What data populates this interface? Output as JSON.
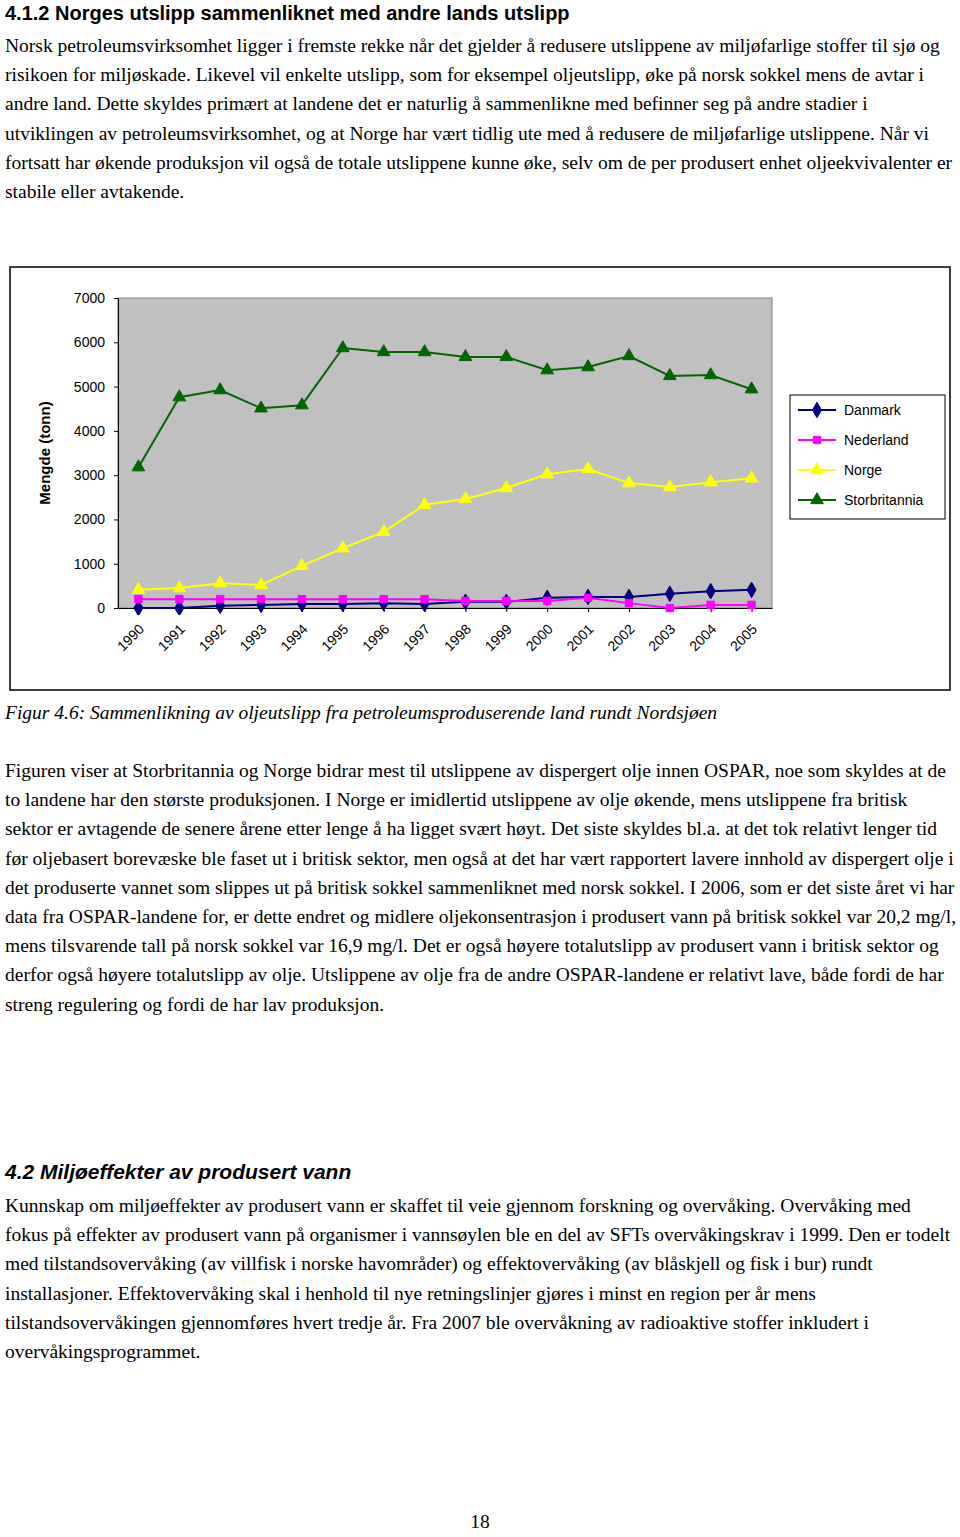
{
  "heading": "4.1.2 Norges utslipp sammenliknet med andre lands utslipp",
  "intro": "Norsk petroleumsvirksomhet ligger i fremste rekke når det gjelder å redusere utslippene av miljøfarlige stoffer til sjø og risikoen for miljøskade. Likevel vil enkelte utslipp, som for eksempel oljeutslipp, øke på norsk sokkel mens de avtar i andre land. Dette skyldes primært at landene det er naturlig å sammenlikne med befinner seg på andre stadier i utviklingen av petroleumsvirksomhet, og at Norge har vært tidlig ute med å redusere de miljøfarlige utslippene. Når vi fortsatt har økende produksjon vil også de totale utslippene kunne øke, selv om de per produsert enhet oljeekvivalenter er stabile eller avtakende.",
  "chart_data": {
    "type": "line",
    "y_label": "Mengde (tonn)",
    "categories": [
      "1990",
      "1991",
      "1992",
      "1993",
      "1994",
      "1995",
      "1996",
      "1997",
      "1998",
      "1999",
      "2000",
      "2001",
      "2002",
      "2003",
      "2004",
      "2005"
    ],
    "ylim": [
      0,
      7000
    ],
    "yticks": [
      0,
      1000,
      2000,
      3000,
      4000,
      5000,
      6000,
      7000
    ],
    "grid": false,
    "legend": "right",
    "series": [
      {
        "name": "Danmark",
        "color": "#000080",
        "marker": "diamond",
        "values": [
          0,
          0,
          50,
          70,
          90,
          90,
          110,
          90,
          140,
          140,
          230,
          250,
          250,
          320,
          380,
          410
        ]
      },
      {
        "name": "Nederland",
        "color": "#ff00ff",
        "marker": "square",
        "values": [
          200,
          200,
          200,
          200,
          200,
          200,
          200,
          200,
          160,
          160,
          160,
          230,
          110,
          0,
          70,
          70
        ]
      },
      {
        "name": "Norge",
        "color": "#ffff00",
        "marker": "triangle",
        "values": [
          410,
          450,
          560,
          520,
          950,
          1350,
          1720,
          2330,
          2460,
          2710,
          3020,
          3140,
          2820,
          2730,
          2840,
          2930
        ]
      },
      {
        "name": "Storbritannia",
        "color": "#006600",
        "marker": "triangle",
        "values": [
          3180,
          4760,
          4920,
          4510,
          4580,
          5870,
          5780,
          5780,
          5670,
          5670,
          5370,
          5440,
          5690,
          5240,
          5260,
          4940
        ]
      }
    ]
  },
  "caption": "Figur 4.6: Sammenlikning av oljeutslipp fra petroleumsproduserende land rundt Nordsjøen",
  "body": "Figuren viser at Storbritannia og Norge bidrar mest til utslippene av dispergert olje innen OSPAR, noe som skyldes at de to landene har den største produksjonen. I Norge er imidlertid utslippene av olje økende, mens utslippene fra britisk sektor er avtagende de senere årene etter lenge å ha ligget svært høyt. Det siste skyldes bl.a. at det tok relativt lenger tid før oljebasert borevæske ble faset ut i britisk sektor, men også at det har vært rapportert lavere innhold av dispergert olje i det produserte vannet som slippes ut på britisk sokkel sammenliknet med norsk sokkel. I 2006, som er det siste året vi har data fra OSPAR-landene for, er dette endret og midlere oljekonsentrasjon i produsert vann på britisk sokkel var 20,2 mg/l, mens tilsvarende tall på norsk sokkel var 16,9 mg/l. Det er også høyere totalutslipp av produsert vann i britisk sektor og derfor også høyere totalutslipp av olje. Utslippene av olje fra de andre OSPAR-landene er relativt lave, både fordi de har streng regulering og fordi de har lav produksjon.",
  "section_heading": "4.2 Miljøeffekter av produsert vann",
  "section_text": "Kunnskap om miljøeffekter av produsert vann er skaffet til veie gjennom forskning og overvåking. Overvåking med fokus på effekter av produsert vann på organismer i vannsøylen ble en del av SFTs overvåkingskrav i 1999. Den er todelt med tilstandsovervåking (av villfisk i norske havområder) og effektovervåking (av blåskjell og fisk i bur) rundt installasjoner. Effektovervåking skal i henhold til nye retningslinjer gjøres i minst en region per år mens tilstandsovervåkingen gjennomføres hvert tredje år. Fra 2007 ble overvåkning av radioaktive stoffer inkludert i overvåkingsprogrammet.",
  "page_number": "18"
}
